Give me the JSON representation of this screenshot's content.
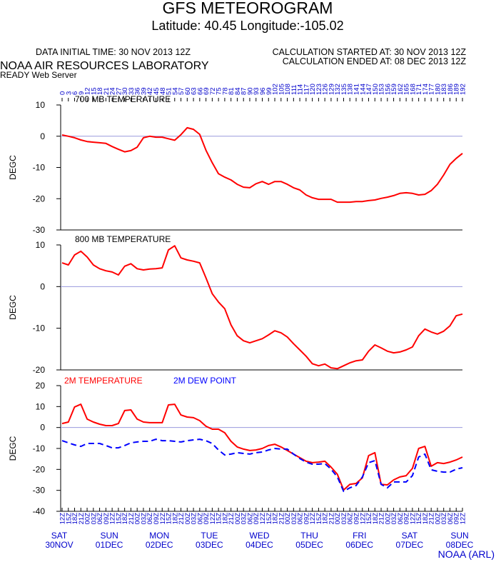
{
  "header": {
    "title": "GFS METEOROGRAM",
    "subtitle": "Latitude: 40.45 Longitude:-105.02",
    "init_time": "DATA INITIAL TIME: 30 NOV 2013 12Z",
    "calc_started": "CALCULATION STARTED AT: 30 NOV 2013 12Z",
    "calc_ended": "CALCULATION ENDED AT: 08 DEC 2013 12Z",
    "lab": "NOAA AIR RESOURCES LABORATORY",
    "server": "READY Web Server",
    "footer": "NOAA (ARL)"
  },
  "x_axis": {
    "hours": [
      0,
      3,
      6,
      9,
      12,
      15,
      18,
      21,
      24,
      27,
      30,
      33,
      36,
      39,
      42,
      45,
      48,
      51,
      54,
      57,
      60,
      63,
      66,
      69,
      72,
      75,
      78,
      81,
      84,
      87,
      90,
      93,
      96,
      99,
      102,
      105,
      108,
      111,
      114,
      117,
      120,
      123,
      126,
      129,
      132,
      135,
      138,
      141,
      144,
      147,
      150,
      153,
      156,
      159,
      162,
      165,
      168,
      171,
      174,
      177,
      180,
      183,
      186,
      189,
      192
    ],
    "xlim": [
      0,
      192
    ],
    "times": [
      "12Z",
      "15Z",
      "18Z",
      "21Z",
      "00Z",
      "03Z",
      "06Z",
      "09Z",
      "12Z",
      "15Z",
      "18Z",
      "21Z",
      "00Z",
      "03Z",
      "06Z",
      "09Z",
      "12Z",
      "15Z",
      "18Z",
      "21Z",
      "00Z",
      "03Z",
      "06Z",
      "09Z",
      "12Z",
      "15Z",
      "18Z",
      "21Z",
      "00Z",
      "03Z",
      "06Z",
      "09Z",
      "12Z",
      "15Z",
      "18Z",
      "21Z",
      "00Z",
      "03Z",
      "06Z",
      "09Z",
      "12Z",
      "15Z",
      "18Z",
      "21Z",
      "00Z",
      "03Z",
      "06Z",
      "09Z",
      "12Z",
      "15Z",
      "18Z",
      "21Z",
      "00Z",
      "03Z",
      "06Z",
      "09Z",
      "12Z",
      "15Z",
      "18Z",
      "21Z",
      "00Z",
      "03Z",
      "06Z",
      "09Z",
      "12Z"
    ],
    "days": [
      [
        "SAT",
        "30NOV"
      ],
      [
        "SUN",
        "01DEC"
      ],
      [
        "MON",
        "02DEC"
      ],
      [
        "TUE",
        "03DEC"
      ],
      [
        "WED",
        "04DEC"
      ],
      [
        "THU",
        "05DEC"
      ],
      [
        "FRI",
        "06DEC"
      ],
      [
        "SAT",
        "07DEC"
      ],
      [
        "SUN",
        "08DEC"
      ]
    ]
  },
  "chart_data": [
    {
      "type": "line",
      "title": "700 MB  TEMPERATURE",
      "ylabel": "DEGC",
      "ylim": [
        -30,
        10
      ],
      "yticks": [
        10,
        0,
        -10,
        -20,
        -30
      ],
      "zero_line_color": "#9999dd",
      "series": [
        {
          "color": "#ff0000",
          "values": [
            0.4,
            0,
            -0.5,
            -1.2,
            -1.7,
            -1.9,
            -2.1,
            -2.3,
            -3.3,
            -4.2,
            -5,
            -4.6,
            -3.5,
            -0.5,
            0,
            -0.3,
            -0.3,
            -0.8,
            -1.3,
            0.5,
            2.7,
            2.2,
            0.6,
            -4.5,
            -8.5,
            -12,
            -13.1,
            -14,
            -15.4,
            -16.3,
            -16.5,
            -15.2,
            -14.5,
            -15.4,
            -14.5,
            -14.5,
            -15.4,
            -16.5,
            -17.2,
            -18.8,
            -19.7,
            -20.2,
            -20.2,
            -20.2,
            -21.1,
            -21.1,
            -21.1,
            -20.9,
            -20.9,
            -20.6,
            -20.4,
            -19.9,
            -19.5,
            -19,
            -18.3,
            -18.1,
            -18.3,
            -18.8,
            -18.6,
            -17.4,
            -15.4,
            -12.4,
            -9,
            -7.1,
            -5.5
          ]
        }
      ]
    },
    {
      "type": "line",
      "title": "800 MB  TEMPERATURE",
      "ylabel": "DEGC",
      "ylim": [
        -20,
        10
      ],
      "yticks": [
        10,
        0,
        -10,
        -20
      ],
      "zero_line_color": "#9999dd",
      "series": [
        {
          "color": "#ff0000",
          "values": [
            5.7,
            5.2,
            7.6,
            8.5,
            7.1,
            5.2,
            4.3,
            3.8,
            3.5,
            2.8,
            4.9,
            5.5,
            4.3,
            4,
            4.2,
            4.3,
            4.5,
            8.8,
            9.8,
            6.9,
            6.4,
            6.1,
            5.7,
            2.1,
            -1.7,
            -3.7,
            -5.3,
            -9.2,
            -11.8,
            -13,
            -13.5,
            -13,
            -12.5,
            -11.6,
            -10.6,
            -11.1,
            -12.1,
            -13.7,
            -15.2,
            -16.7,
            -18.5,
            -19,
            -18.6,
            -19.5,
            -19.7,
            -19,
            -18.3,
            -17.8,
            -17.6,
            -15.5,
            -14,
            -14.7,
            -15.5,
            -15.9,
            -15.7,
            -15.2,
            -14.5,
            -11.8,
            -10.2,
            -10.9,
            -11.4,
            -10.7,
            -9.4,
            -7,
            -6.6
          ]
        }
      ]
    },
    {
      "type": "line",
      "ylabel": "DEGC",
      "ylim": [
        -40,
        20
      ],
      "yticks": [
        20,
        10,
        0,
        -10,
        -20,
        -30,
        -40
      ],
      "zero_line_color": "#9999dd",
      "series": [
        {
          "name": "2M TEMPERATURE",
          "color": "#ff0000",
          "values": [
            1.9,
            2.6,
            9.8,
            11.1,
            4,
            2.6,
            1.6,
            0.9,
            0.9,
            1.9,
            8.1,
            8.4,
            4,
            2.6,
            2.3,
            2.3,
            2.3,
            10.8,
            11.1,
            6,
            5,
            4.7,
            3.3,
            0.6,
            -0.8,
            -0.8,
            -2.5,
            -6.6,
            -9.3,
            -10.3,
            -11,
            -10.7,
            -10,
            -8.6,
            -8,
            -9.3,
            -11,
            -12.7,
            -14.4,
            -16.1,
            -16.8,
            -16.5,
            -16.1,
            -18.9,
            -22.3,
            -29.8,
            -27.1,
            -26.7,
            -24,
            -13.4,
            -12,
            -27.1,
            -27.4,
            -25,
            -23.6,
            -23,
            -19.5,
            -10,
            -9,
            -18.5,
            -16.8,
            -17.2,
            -16.5,
            -15.5,
            -14.1
          ]
        },
        {
          "name": "2M   DEW POINT",
          "color": "#0000ff",
          "dashed": true,
          "values": [
            -6.3,
            -7.3,
            -8.3,
            -9,
            -7.6,
            -7.6,
            -7.6,
            -8.6,
            -9.7,
            -9.7,
            -8.6,
            -7.3,
            -6.9,
            -6.6,
            -6.6,
            -5.6,
            -6.3,
            -6.3,
            -6.6,
            -6.9,
            -6.3,
            -5.9,
            -5.6,
            -6.3,
            -7.6,
            -10.7,
            -13.1,
            -12.7,
            -12,
            -12.4,
            -12.7,
            -12,
            -11.7,
            -10.7,
            -10,
            -10.3,
            -10.3,
            -12.7,
            -14.8,
            -16.5,
            -17.5,
            -17.5,
            -17.2,
            -19.9,
            -23.6,
            -30.5,
            -28.8,
            -27.7,
            -23.6,
            -16.8,
            -15.8,
            -27.1,
            -28.8,
            -26,
            -26,
            -26,
            -23,
            -14.1,
            -12.7,
            -20.2,
            -20.9,
            -21.3,
            -21.3,
            -19.9,
            -19.2
          ]
        }
      ]
    }
  ]
}
